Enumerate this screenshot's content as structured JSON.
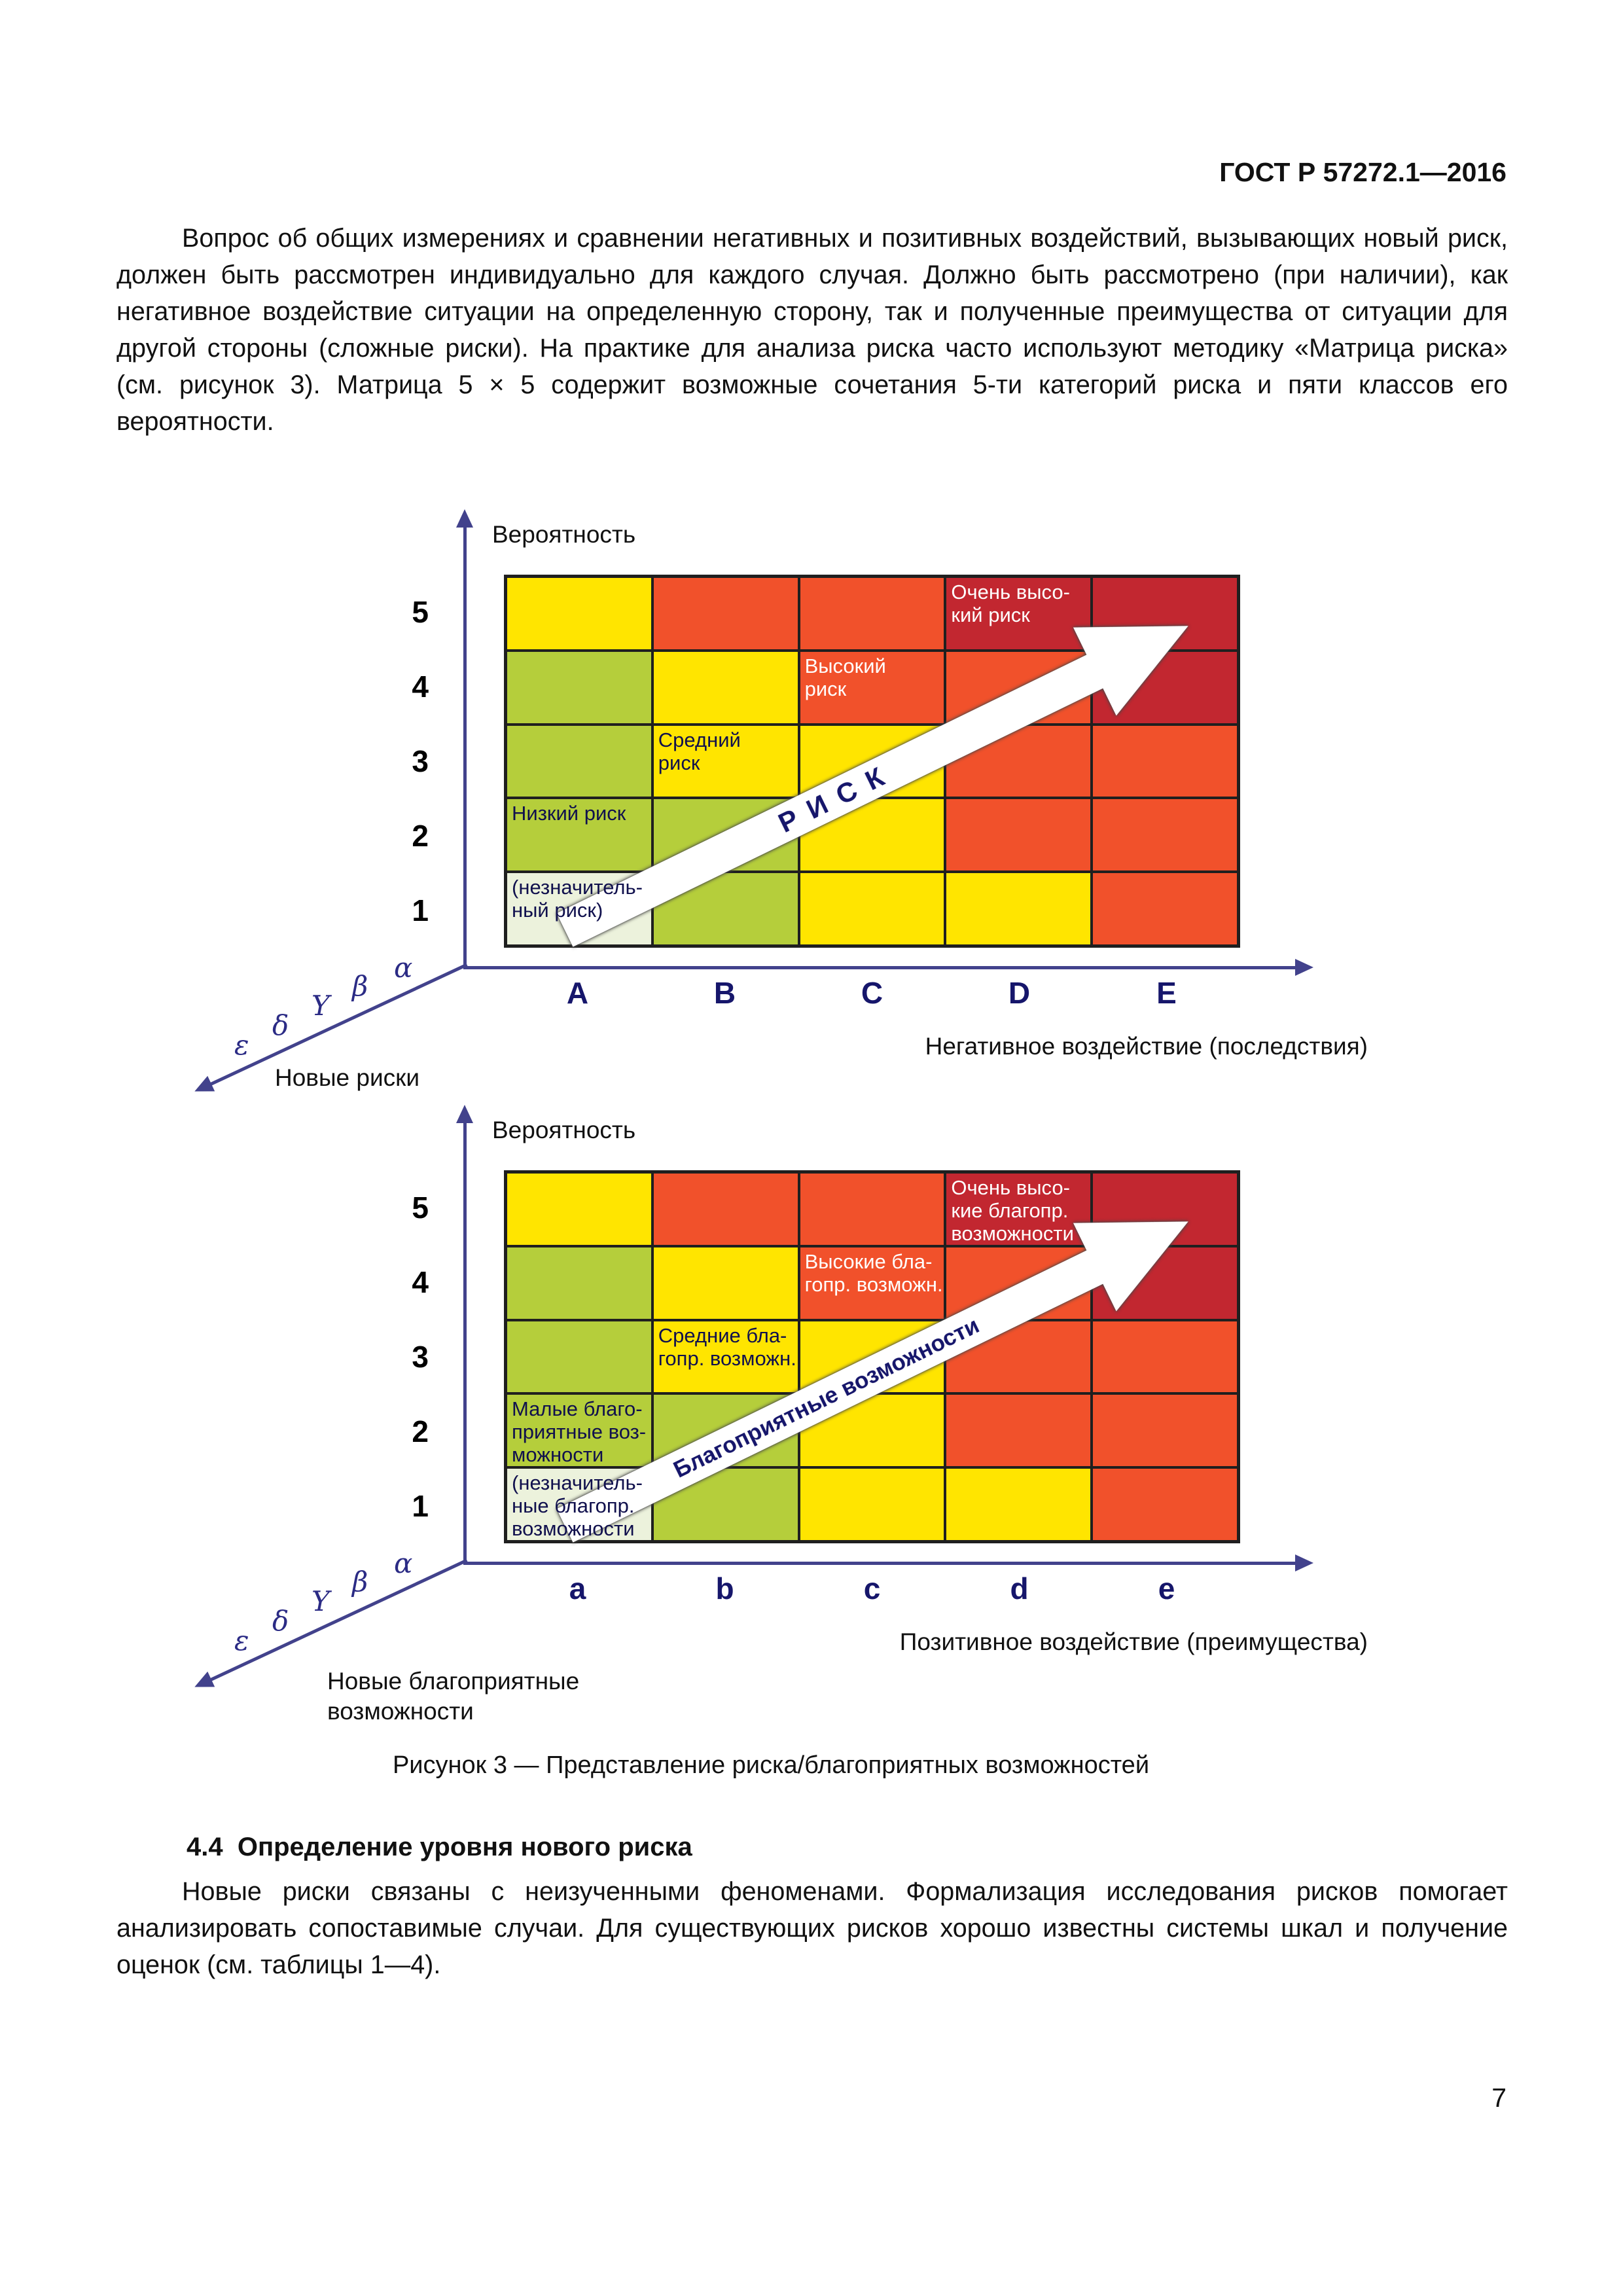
{
  "page": {
    "header": "ГОСТ Р 57272.1—2016",
    "page_number": "7"
  },
  "intro_paragraph": "Вопрос об общих измерениях и сравнении негативных и позитивных воздействий, вызывающих новый риск, должен быть рассмотрен индивидуально для каждого случая. Должно быть рассмотрено (при наличии), как негативное воздействие ситуации на определенную сторону, так и полученные преимущества от ситуации для другой стороны (сложные риски). На практике для анализа риска часто используют методику «Матрица риска» (см. рисунок 3). Матрица 5 × 5 содержит возможные сочетания 5-ти категорий риска и пяти классов его вероятности.",
  "figure": {
    "caption": "Рисунок 3 — Представление риска/благоприятных возможностей",
    "colors": {
      "y": "#FFE500",
      "g": "#B5CE3B",
      "p": "#ECF2DC",
      "r": "#F1512B",
      "d": "#C22730"
    },
    "axis_color": "#42428c",
    "risk_matrix": {
      "y_axis_label": "Вероятность",
      "x_axis_label": "Негативное воздействие (последствия)",
      "diagonal_label": "Новые риски",
      "arrow_text": "Р И С К",
      "row_labels": [
        "5",
        "4",
        "3",
        "2",
        "1"
      ],
      "col_labels": [
        "A",
        "B",
        "C",
        "D",
        "E"
      ],
      "greek_labels": [
        "ε",
        "δ",
        "Y",
        "β",
        "α"
      ],
      "cells": [
        [
          "y",
          "r",
          "r",
          "d",
          "d"
        ],
        [
          "g",
          "y",
          "r",
          "r",
          "d"
        ],
        [
          "g",
          "y",
          "y",
          "r",
          "r"
        ],
        [
          "g",
          "g",
          "y",
          "r",
          "r"
        ],
        [
          "p",
          "g",
          "y",
          "y",
          "r"
        ]
      ],
      "cell_labels": [
        {
          "r": 0,
          "c": 3,
          "text": "Очень высо-\nкий риск",
          "light": true
        },
        {
          "r": 1,
          "c": 2,
          "text": "Высокий\nриск",
          "light": true
        },
        {
          "r": 2,
          "c": 1,
          "text": "Средний\nриск",
          "light": false
        },
        {
          "r": 3,
          "c": 0,
          "text": "Низкий риск",
          "light": false
        },
        {
          "r": 4,
          "c": 0,
          "text": "(незначитель-\nный риск)",
          "light": false
        }
      ]
    },
    "opportunity_matrix": {
      "y_axis_label": "Вероятность",
      "x_axis_label": "Позитивное воздействие (преимущества)",
      "diagonal_label": "Новые благоприятные\nвозможности",
      "arrow_text": "Благоприятные возможности",
      "row_labels": [
        "5",
        "4",
        "3",
        "2",
        "1"
      ],
      "col_labels": [
        "a",
        "b",
        "c",
        "d",
        "e"
      ],
      "greek_labels": [
        "ε",
        "δ",
        "Y",
        "β",
        "α"
      ],
      "cells": [
        [
          "y",
          "r",
          "r",
          "d",
          "d"
        ],
        [
          "g",
          "y",
          "r",
          "r",
          "d"
        ],
        [
          "g",
          "y",
          "y",
          "r",
          "r"
        ],
        [
          "g",
          "g",
          "y",
          "r",
          "r"
        ],
        [
          "p",
          "g",
          "y",
          "y",
          "r"
        ]
      ],
      "cell_labels": [
        {
          "r": 0,
          "c": 3,
          "text": "Очень высо-\nкие благопр.\nвозможности",
          "light": true
        },
        {
          "r": 1,
          "c": 2,
          "text": "Высокие бла-\nгопр. возможн.",
          "light": true
        },
        {
          "r": 2,
          "c": 1,
          "text": "Средние бла-\nгопр. возможн.",
          "light": false
        },
        {
          "r": 3,
          "c": 0,
          "text": "Малые благо-\nприятные воз-\nможности",
          "light": false
        },
        {
          "r": 4,
          "c": 0,
          "text": "(незначитель-\nные благопр.\nвозможности",
          "light": false
        }
      ]
    }
  },
  "section": {
    "heading": "4.4  Определение уровня нового риска",
    "paragraph": "Новые риски связаны с неизученными феноменами. Формализация исследования рисков помогает анализировать сопоставимые случаи. Для существующих рисков хорошо известны системы шкал и получение оценок (см. таблицы 1—4)."
  }
}
